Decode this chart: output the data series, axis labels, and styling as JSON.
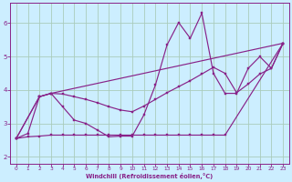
{
  "xlabel": "Windchill (Refroidissement éolien,°C)",
  "bg_color": "#cceeff",
  "grid_color": "#aaccbb",
  "line_color": "#882288",
  "xlim": [
    -0.5,
    23.5
  ],
  "ylim": [
    1.8,
    6.6
  ],
  "yticks": [
    2,
    3,
    4,
    5,
    6
  ],
  "xticks": [
    0,
    1,
    2,
    3,
    4,
    5,
    6,
    7,
    8,
    9,
    10,
    11,
    12,
    13,
    14,
    15,
    16,
    17,
    18,
    19,
    20,
    21,
    22,
    23
  ],
  "line1_x": [
    0,
    1,
    2,
    3,
    4,
    5,
    6,
    7,
    8,
    9,
    10,
    11,
    12,
    13,
    14,
    15,
    16,
    17,
    18,
    19,
    20,
    21,
    22,
    23
  ],
  "line1_y": [
    2.55,
    2.7,
    3.8,
    3.9,
    3.5,
    3.1,
    3.0,
    2.8,
    2.6,
    2.62,
    2.62,
    3.25,
    4.15,
    5.35,
    6.02,
    5.55,
    6.3,
    4.5,
    3.9,
    3.9,
    4.65,
    5.0,
    4.65,
    5.4
  ],
  "line2_x": [
    0,
    1,
    2,
    3,
    4,
    5,
    6,
    7,
    8,
    9,
    10,
    11,
    12,
    13,
    14,
    15,
    16,
    17,
    18,
    23
  ],
  "line2_y": [
    2.55,
    2.6,
    2.62,
    2.65,
    2.65,
    2.65,
    2.65,
    2.65,
    2.65,
    2.65,
    2.65,
    2.65,
    2.65,
    2.65,
    2.65,
    2.65,
    2.65,
    2.65,
    2.65,
    5.4
  ],
  "line3_x": [
    0,
    2,
    3,
    4,
    5,
    6,
    7,
    8,
    9,
    10,
    11,
    12,
    13,
    14,
    15,
    16,
    17,
    18,
    19,
    20,
    21,
    22,
    23
  ],
  "line3_y": [
    2.55,
    3.8,
    3.9,
    3.88,
    3.8,
    3.72,
    3.62,
    3.5,
    3.4,
    3.35,
    3.52,
    3.72,
    3.92,
    4.1,
    4.28,
    4.48,
    4.68,
    4.5,
    3.92,
    4.18,
    4.48,
    4.65,
    5.4
  ],
  "line4_x": [
    0,
    2,
    3,
    23
  ],
  "line4_y": [
    2.55,
    3.8,
    3.9,
    5.4
  ]
}
